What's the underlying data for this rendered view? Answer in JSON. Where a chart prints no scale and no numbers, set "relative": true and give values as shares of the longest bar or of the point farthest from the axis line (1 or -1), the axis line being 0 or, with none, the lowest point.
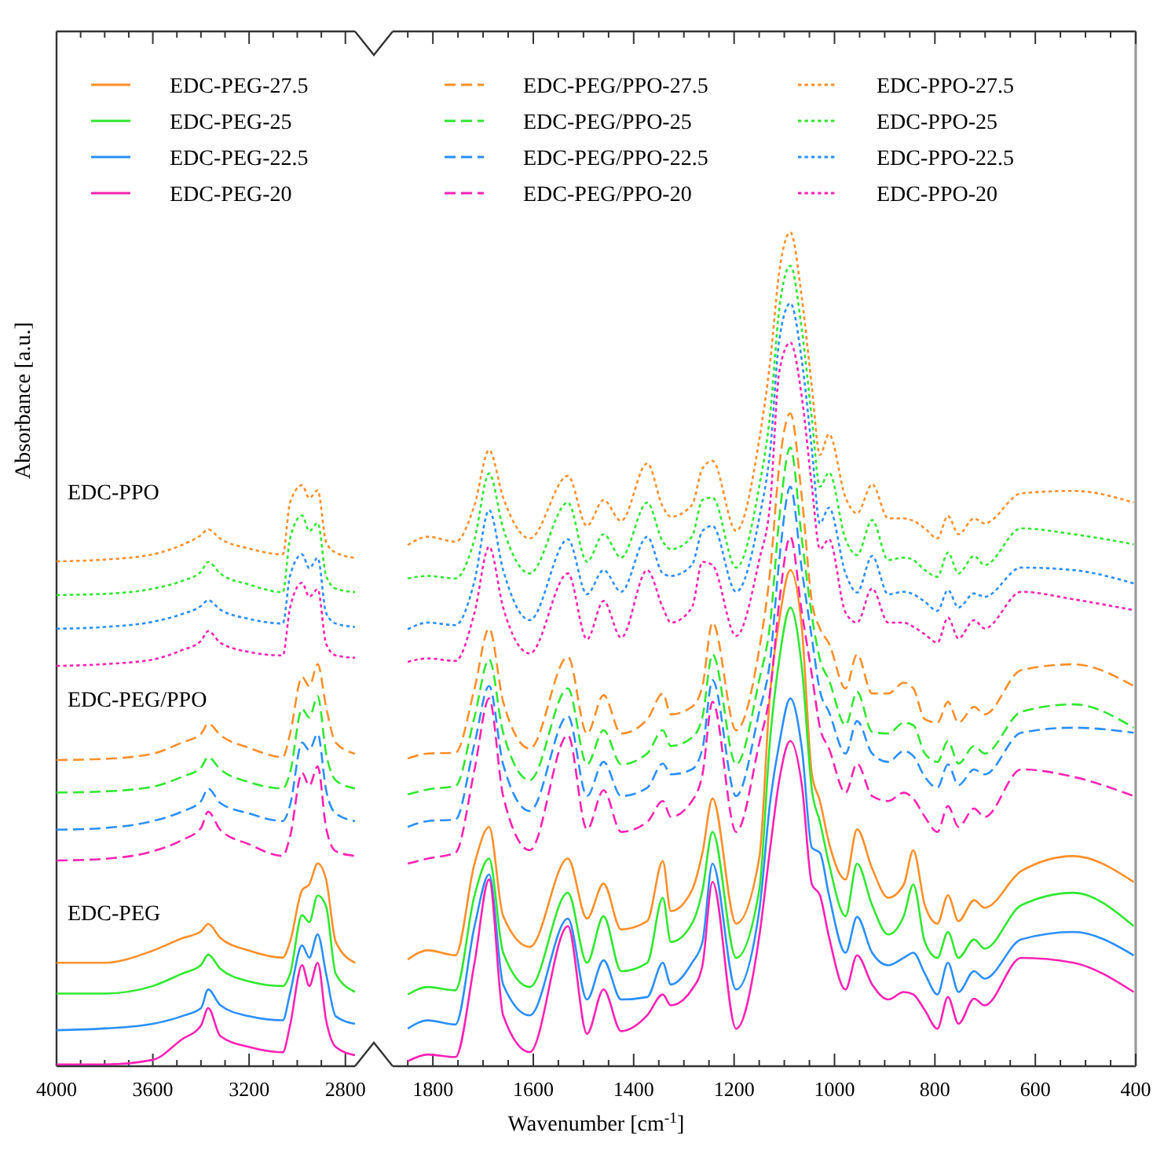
{
  "chart_data": [
    {
      "type": "line",
      "ylabel": "Absorbance [a.u.]",
      "relative": true,
      "annotations": [
        "EDC-PPO",
        "EDC-PEG/PPO",
        "EDC-PEG"
      ],
      "x": [
        4000,
        3800,
        3600,
        3480,
        3400,
        3370,
        3320,
        3200,
        3060,
        3030,
        2980,
        2950,
        2915,
        2880,
        2840,
        2760
      ],
      "xlim": [
        4000,
        2760
      ],
      "xticks": [
        4000,
        {
          "value": 3900,
          "label": null
        },
        {
          "value": 3800,
          "label": null
        },
        {
          "value": 3700,
          "label": null
        },
        3600,
        {
          "value": 3500,
          "label": null
        },
        {
          "value": 3400,
          "label": null
        },
        {
          "value": 3300,
          "label": null
        },
        3200,
        {
          "value": 3100,
          "label": null
        },
        {
          "value": 3000,
          "label": null
        },
        {
          "value": 2900,
          "label": null
        },
        2800
      ],
      "series": [
        {
          "color": "#ff8f2a",
          "line_style": "solid",
          "values": [
            0.178,
            0.178,
            0.199,
            0.22,
            0.232,
            0.245,
            0.221,
            0.199,
            0.187,
            0.214,
            0.303,
            0.313,
            0.349,
            0.321,
            0.214,
            0.178
          ]
        },
        {
          "color": "#2fe82f",
          "line_style": "solid",
          "values": [
            0.125,
            0.125,
            0.138,
            0.159,
            0.174,
            0.192,
            0.168,
            0.146,
            0.138,
            0.159,
            0.26,
            0.248,
            0.294,
            0.275,
            0.159,
            0.128
          ]
        },
        {
          "color": "#2a8fff",
          "line_style": "solid",
          "values": [
            0.062,
            0.065,
            0.073,
            0.086,
            0.1,
            0.132,
            0.105,
            0.086,
            0.079,
            0.125,
            0.208,
            0.187,
            0.227,
            0.159,
            0.086,
            0.073
          ]
        },
        {
          "color": "#ff22b4",
          "line_style": "solid",
          "values": [
            0.003,
            0.003,
            0.011,
            0.046,
            0.07,
            0.1,
            0.052,
            0.033,
            0.024,
            0.07,
            0.174,
            0.138,
            0.178,
            0.079,
            0.033,
            0.019
          ]
        },
        {
          "color": "#ff8f2a",
          "line_style": "dashed",
          "values": [
            0.527,
            0.529,
            0.538,
            0.557,
            0.572,
            0.59,
            0.57,
            0.548,
            0.532,
            0.572,
            0.67,
            0.654,
            0.692,
            0.618,
            0.557,
            0.538
          ]
        },
        {
          "color": "#2fe82f",
          "line_style": "dashed",
          "values": [
            0.471,
            0.473,
            0.481,
            0.498,
            0.514,
            0.532,
            0.511,
            0.489,
            0.478,
            0.505,
            0.615,
            0.6,
            0.637,
            0.538,
            0.492,
            0.478
          ]
        },
        {
          "color": "#2a8fff",
          "line_style": "dashed",
          "values": [
            0.407,
            0.41,
            0.422,
            0.438,
            0.456,
            0.478,
            0.453,
            0.435,
            0.422,
            0.449,
            0.557,
            0.544,
            0.572,
            0.475,
            0.435,
            0.422
          ]
        },
        {
          "color": "#ff22b4",
          "line_style": "dashed",
          "values": [
            0.354,
            0.357,
            0.37,
            0.389,
            0.41,
            0.438,
            0.407,
            0.382,
            0.362,
            0.395,
            0.505,
            0.483,
            0.516,
            0.41,
            0.37,
            0.362
          ]
        },
        {
          "color": "#ff8f2a",
          "line_style": "dotted",
          "values": [
            0.869,
            0.872,
            0.881,
            0.897,
            0.914,
            0.924,
            0.908,
            0.891,
            0.881,
            0.97,
            1.0,
            0.978,
            0.991,
            0.902,
            0.884,
            0.875
          ]
        },
        {
          "color": "#2fe82f",
          "line_style": "dotted",
          "values": [
            0.811,
            0.813,
            0.822,
            0.835,
            0.851,
            0.868,
            0.848,
            0.829,
            0.816,
            0.908,
            0.948,
            0.921,
            0.935,
            0.844,
            0.822,
            0.816
          ]
        },
        {
          "color": "#2a8fff",
          "line_style": "dotted",
          "values": [
            0.753,
            0.756,
            0.765,
            0.778,
            0.792,
            0.802,
            0.786,
            0.77,
            0.762,
            0.844,
            0.881,
            0.857,
            0.875,
            0.78,
            0.762,
            0.756
          ]
        },
        {
          "color": "#ff22b4",
          "line_style": "dotted",
          "values": [
            0.689,
            0.692,
            0.7,
            0.716,
            0.732,
            0.749,
            0.729,
            0.713,
            0.707,
            0.789,
            0.832,
            0.808,
            0.821,
            0.727,
            0.707,
            0.703
          ]
        }
      ]
    },
    {
      "type": "line",
      "xlabel": "Wavenumber [cm$^{-1}$]",
      "relative": true,
      "legend": "top",
      "x": [
        1850,
        1810,
        1755,
        1717,
        1688,
        1660,
        1607,
        1531,
        1493,
        1460,
        1425,
        1373,
        1342,
        1326,
        1284,
        1263,
        1243,
        1196,
        1150,
        1128,
        1110,
        1088,
        1065,
        1045,
        1029,
        1011,
        978,
        955,
        925,
        893,
        862,
        843,
        820,
        795,
        774,
        753,
        722,
        701,
        628,
        524,
        404
      ],
      "xlim": [
        1880,
        400
      ],
      "xticks": [
        {
          "value": 1850,
          "label": null
        },
        1800,
        {
          "value": 1750,
          "label": null
        },
        {
          "value": 1700,
          "label": null
        },
        {
          "value": 1650,
          "label": null
        },
        1600,
        {
          "value": 1550,
          "label": null
        },
        {
          "value": 1500,
          "label": null
        },
        {
          "value": 1450,
          "label": null
        },
        1400,
        {
          "value": 1350,
          "label": null
        },
        {
          "value": 1300,
          "label": null
        },
        {
          "value": 1250,
          "label": null
        },
        1200,
        {
          "value": 1150,
          "label": null
        },
        {
          "value": 1100,
          "label": null
        },
        {
          "value": 1050,
          "label": null
        },
        1000,
        {
          "value": 950,
          "label": null
        },
        {
          "value": 900,
          "label": null
        },
        {
          "value": 850,
          "label": null
        },
        800,
        {
          "value": 750,
          "label": null
        },
        {
          "value": 700,
          "label": null
        },
        {
          "value": 650,
          "label": null
        },
        600,
        {
          "value": 550,
          "label": null
        },
        {
          "value": 500,
          "label": null
        },
        {
          "value": 450,
          "label": null
        },
        400
      ],
      "series": [
        {
          "name": "EDC-PEG-27.5",
          "color": "#ff8f2a",
          "line_style": "solid",
          "values": [
            0.128,
            0.139,
            0.133,
            0.243,
            0.287,
            0.18,
            0.143,
            0.249,
            0.177,
            0.219,
            0.164,
            0.174,
            0.246,
            0.186,
            0.211,
            0.256,
            0.321,
            0.171,
            0.249,
            0.45,
            0.535,
            0.595,
            0.525,
            0.35,
            0.318,
            0.268,
            0.224,
            0.284,
            0.237,
            0.202,
            0.218,
            0.259,
            0.193,
            0.171,
            0.205,
            0.174,
            0.199,
            0.19,
            0.234,
            0.252,
            0.221
          ]
        },
        {
          "name": "EDC-PEG-25",
          "color": "#2fe82f",
          "line_style": "solid",
          "values": [
            0.086,
            0.095,
            0.091,
            0.205,
            0.249,
            0.136,
            0.095,
            0.208,
            0.124,
            0.18,
            0.114,
            0.124,
            0.202,
            0.149,
            0.171,
            0.211,
            0.281,
            0.13,
            0.211,
            0.394,
            0.488,
            0.55,
            0.478,
            0.331,
            0.293,
            0.243,
            0.18,
            0.243,
            0.193,
            0.158,
            0.18,
            0.218,
            0.149,
            0.13,
            0.161,
            0.13,
            0.152,
            0.141,
            0.193,
            0.208,
            0.168
          ]
        },
        {
          "name": "EDC-PEG-22.5",
          "color": "#2a8fff",
          "line_style": "solid",
          "values": [
            0.045,
            0.055,
            0.05,
            0.168,
            0.23,
            0.098,
            0.061,
            0.177,
            0.08,
            0.127,
            0.08,
            0.083,
            0.124,
            0.098,
            0.124,
            0.149,
            0.243,
            0.092,
            0.186,
            0.318,
            0.387,
            0.441,
            0.381,
            0.262,
            0.256,
            0.205,
            0.136,
            0.179,
            0.136,
            0.121,
            0.13,
            0.136,
            0.111,
            0.086,
            0.124,
            0.089,
            0.114,
            0.105,
            0.152,
            0.161,
            0.133
          ]
        },
        {
          "name": "EDC-PEG-20",
          "color": "#ff22b4",
          "line_style": "solid",
          "values": [
            0.006,
            0.014,
            0.011,
            0.124,
            0.224,
            0.061,
            0.017,
            0.168,
            0.039,
            0.092,
            0.042,
            0.061,
            0.086,
            0.073,
            0.092,
            0.121,
            0.221,
            0.045,
            0.155,
            0.262,
            0.343,
            0.39,
            0.337,
            0.218,
            0.205,
            0.155,
            0.092,
            0.133,
            0.098,
            0.08,
            0.089,
            0.086,
            0.067,
            0.045,
            0.083,
            0.051,
            0.081,
            0.073,
            0.13,
            0.124,
            0.089
          ]
        },
        {
          "name": "EDC-PEG/PPO-27.5",
          "color": "#ff8f2a",
          "line_style": "dashed",
          "values": [
            0.369,
            0.375,
            0.376,
            0.453,
            0.525,
            0.437,
            0.381,
            0.491,
            0.399,
            0.445,
            0.399,
            0.416,
            0.447,
            0.422,
            0.431,
            0.456,
            0.532,
            0.403,
            0.5,
            0.595,
            0.72,
            0.783,
            0.682,
            0.557,
            0.525,
            0.507,
            0.453,
            0.494,
            0.447,
            0.447,
            0.46,
            0.453,
            0.416,
            0.412,
            0.437,
            0.412,
            0.431,
            0.422,
            0.475,
            0.482,
            0.456
          ]
        },
        {
          "name": "EDC-PEG/PPO-25",
          "color": "#2fe82f",
          "line_style": "dashed",
          "values": [
            0.326,
            0.332,
            0.336,
            0.419,
            0.488,
            0.4,
            0.343,
            0.453,
            0.362,
            0.403,
            0.362,
            0.375,
            0.403,
            0.384,
            0.394,
            0.419,
            0.494,
            0.362,
            0.463,
            0.532,
            0.657,
            0.742,
            0.632,
            0.54,
            0.488,
            0.463,
            0.409,
            0.449,
            0.401,
            0.399,
            0.412,
            0.409,
            0.375,
            0.365,
            0.39,
            0.363,
            0.384,
            0.375,
            0.425,
            0.434,
            0.406
          ]
        },
        {
          "name": "EDC-PEG/PPO-22.5",
          "color": "#2a8fff",
          "line_style": "dashed",
          "values": [
            0.287,
            0.294,
            0.296,
            0.387,
            0.456,
            0.362,
            0.306,
            0.42,
            0.324,
            0.365,
            0.324,
            0.334,
            0.363,
            0.35,
            0.356,
            0.381,
            0.463,
            0.324,
            0.425,
            0.488,
            0.607,
            0.695,
            0.595,
            0.513,
            0.45,
            0.425,
            0.375,
            0.414,
            0.375,
            0.365,
            0.378,
            0.372,
            0.347,
            0.334,
            0.362,
            0.337,
            0.356,
            0.35,
            0.4,
            0.406,
            0.4
          ]
        },
        {
          "name": "EDC-PEG/PPO-20",
          "color": "#ff22b4",
          "line_style": "dashed",
          "values": [
            0.243,
            0.249,
            0.256,
            0.356,
            0.441,
            0.324,
            0.259,
            0.397,
            0.284,
            0.331,
            0.281,
            0.293,
            0.318,
            0.299,
            0.318,
            0.35,
            0.437,
            0.281,
            0.387,
            0.45,
            0.557,
            0.635,
            0.544,
            0.469,
            0.406,
            0.381,
            0.328,
            0.363,
            0.324,
            0.318,
            0.328,
            0.321,
            0.299,
            0.281,
            0.312,
            0.287,
            0.309,
            0.299,
            0.356,
            0.347,
            0.324
          ]
        },
        {
          "name": "EDC-PPO-27.5",
          "color": "#ff8f2a",
          "line_style": "dotted",
          "values": [
            0.625,
            0.635,
            0.629,
            0.673,
            0.739,
            0.682,
            0.633,
            0.708,
            0.648,
            0.679,
            0.654,
            0.723,
            0.671,
            0.659,
            0.673,
            0.717,
            0.726,
            0.642,
            0.751,
            0.846,
            0.953,
            1.0,
            0.921,
            0.814,
            0.733,
            0.758,
            0.682,
            0.663,
            0.698,
            0.657,
            0.657,
            0.654,
            0.645,
            0.633,
            0.66,
            0.638,
            0.657,
            0.651,
            0.687,
            0.69,
            0.676
          ]
        },
        {
          "name": "EDC-PPO-25",
          "color": "#2fe82f",
          "line_style": "dotted",
          "values": [
            0.585,
            0.588,
            0.585,
            0.632,
            0.711,
            0.645,
            0.591,
            0.676,
            0.605,
            0.638,
            0.61,
            0.676,
            0.629,
            0.62,
            0.635,
            0.679,
            0.682,
            0.598,
            0.695,
            0.783,
            0.908,
            0.96,
            0.883,
            0.776,
            0.695,
            0.712,
            0.632,
            0.613,
            0.655,
            0.607,
            0.61,
            0.607,
            0.595,
            0.587,
            0.616,
            0.591,
            0.612,
            0.601,
            0.645,
            0.638,
            0.626
          ]
        },
        {
          "name": "EDC-PPO-22.5",
          "color": "#2a8fff",
          "line_style": "dotted",
          "values": [
            0.524,
            0.532,
            0.529,
            0.582,
            0.667,
            0.595,
            0.535,
            0.632,
            0.566,
            0.595,
            0.569,
            0.635,
            0.591,
            0.588,
            0.601,
            0.642,
            0.648,
            0.569,
            0.657,
            0.739,
            0.871,
            0.915,
            0.846,
            0.739,
            0.651,
            0.67,
            0.591,
            0.568,
            0.612,
            0.566,
            0.569,
            0.566,
            0.557,
            0.546,
            0.571,
            0.55,
            0.567,
            0.563,
            0.598,
            0.595,
            0.579
          ]
        },
        {
          "name": "EDC-PPO-20",
          "color": "#ff22b4",
          "line_style": "dotted",
          "values": [
            0.485,
            0.489,
            0.486,
            0.544,
            0.623,
            0.55,
            0.495,
            0.591,
            0.512,
            0.558,
            0.514,
            0.595,
            0.55,
            0.532,
            0.55,
            0.605,
            0.601,
            0.516,
            0.607,
            0.676,
            0.833,
            0.868,
            0.802,
            0.695,
            0.62,
            0.632,
            0.544,
            0.532,
            0.573,
            0.532,
            0.532,
            0.527,
            0.518,
            0.508,
            0.538,
            0.513,
            0.535,
            0.525,
            0.569,
            0.56,
            0.547
          ]
        }
      ]
    }
  ]
}
